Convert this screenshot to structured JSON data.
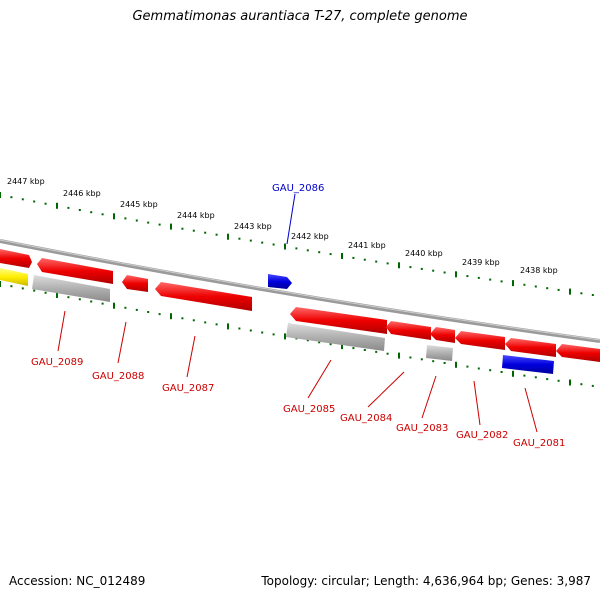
{
  "title": "Gemmatimonas aurantiaca T-27, complete genome",
  "accession": "Accession: NC_012489",
  "footer_info": "Topology: circular; Length: 4,636,964 bp; Genes: 3,987",
  "colors": {
    "forward_cds": "#ee0000",
    "reverse_cds": "#ee0000",
    "rna": "#0000dd",
    "other_feature": "#aaaaaa",
    "highlight": "#ffee00",
    "backbone": "#888888",
    "tick": "#006600",
    "label_red": "#cc0000",
    "label_blue": "#0000cc"
  },
  "kbp_labels": [
    "2447 kbp",
    "2446 kbp",
    "2445 kbp",
    "2444 kbp",
    "2443 kbp",
    "2442 kbp",
    "2441 kbp",
    "2440 kbp",
    "2439 kbp",
    "2438 kbp"
  ],
  "gene_labels": [
    {
      "text": "GAU_2086",
      "color": "blue"
    },
    {
      "text": "GAU_2089",
      "color": "red"
    },
    {
      "text": "GAU_2088",
      "color": "red"
    },
    {
      "text": "GAU_2087",
      "color": "red"
    },
    {
      "text": "GAU_2085",
      "color": "red"
    },
    {
      "text": "GAU_2084",
      "color": "red"
    },
    {
      "text": "GAU_2083",
      "color": "red"
    },
    {
      "text": "GAU_2082",
      "color": "red"
    },
    {
      "text": "GAU_2081",
      "color": "red"
    }
  ]
}
